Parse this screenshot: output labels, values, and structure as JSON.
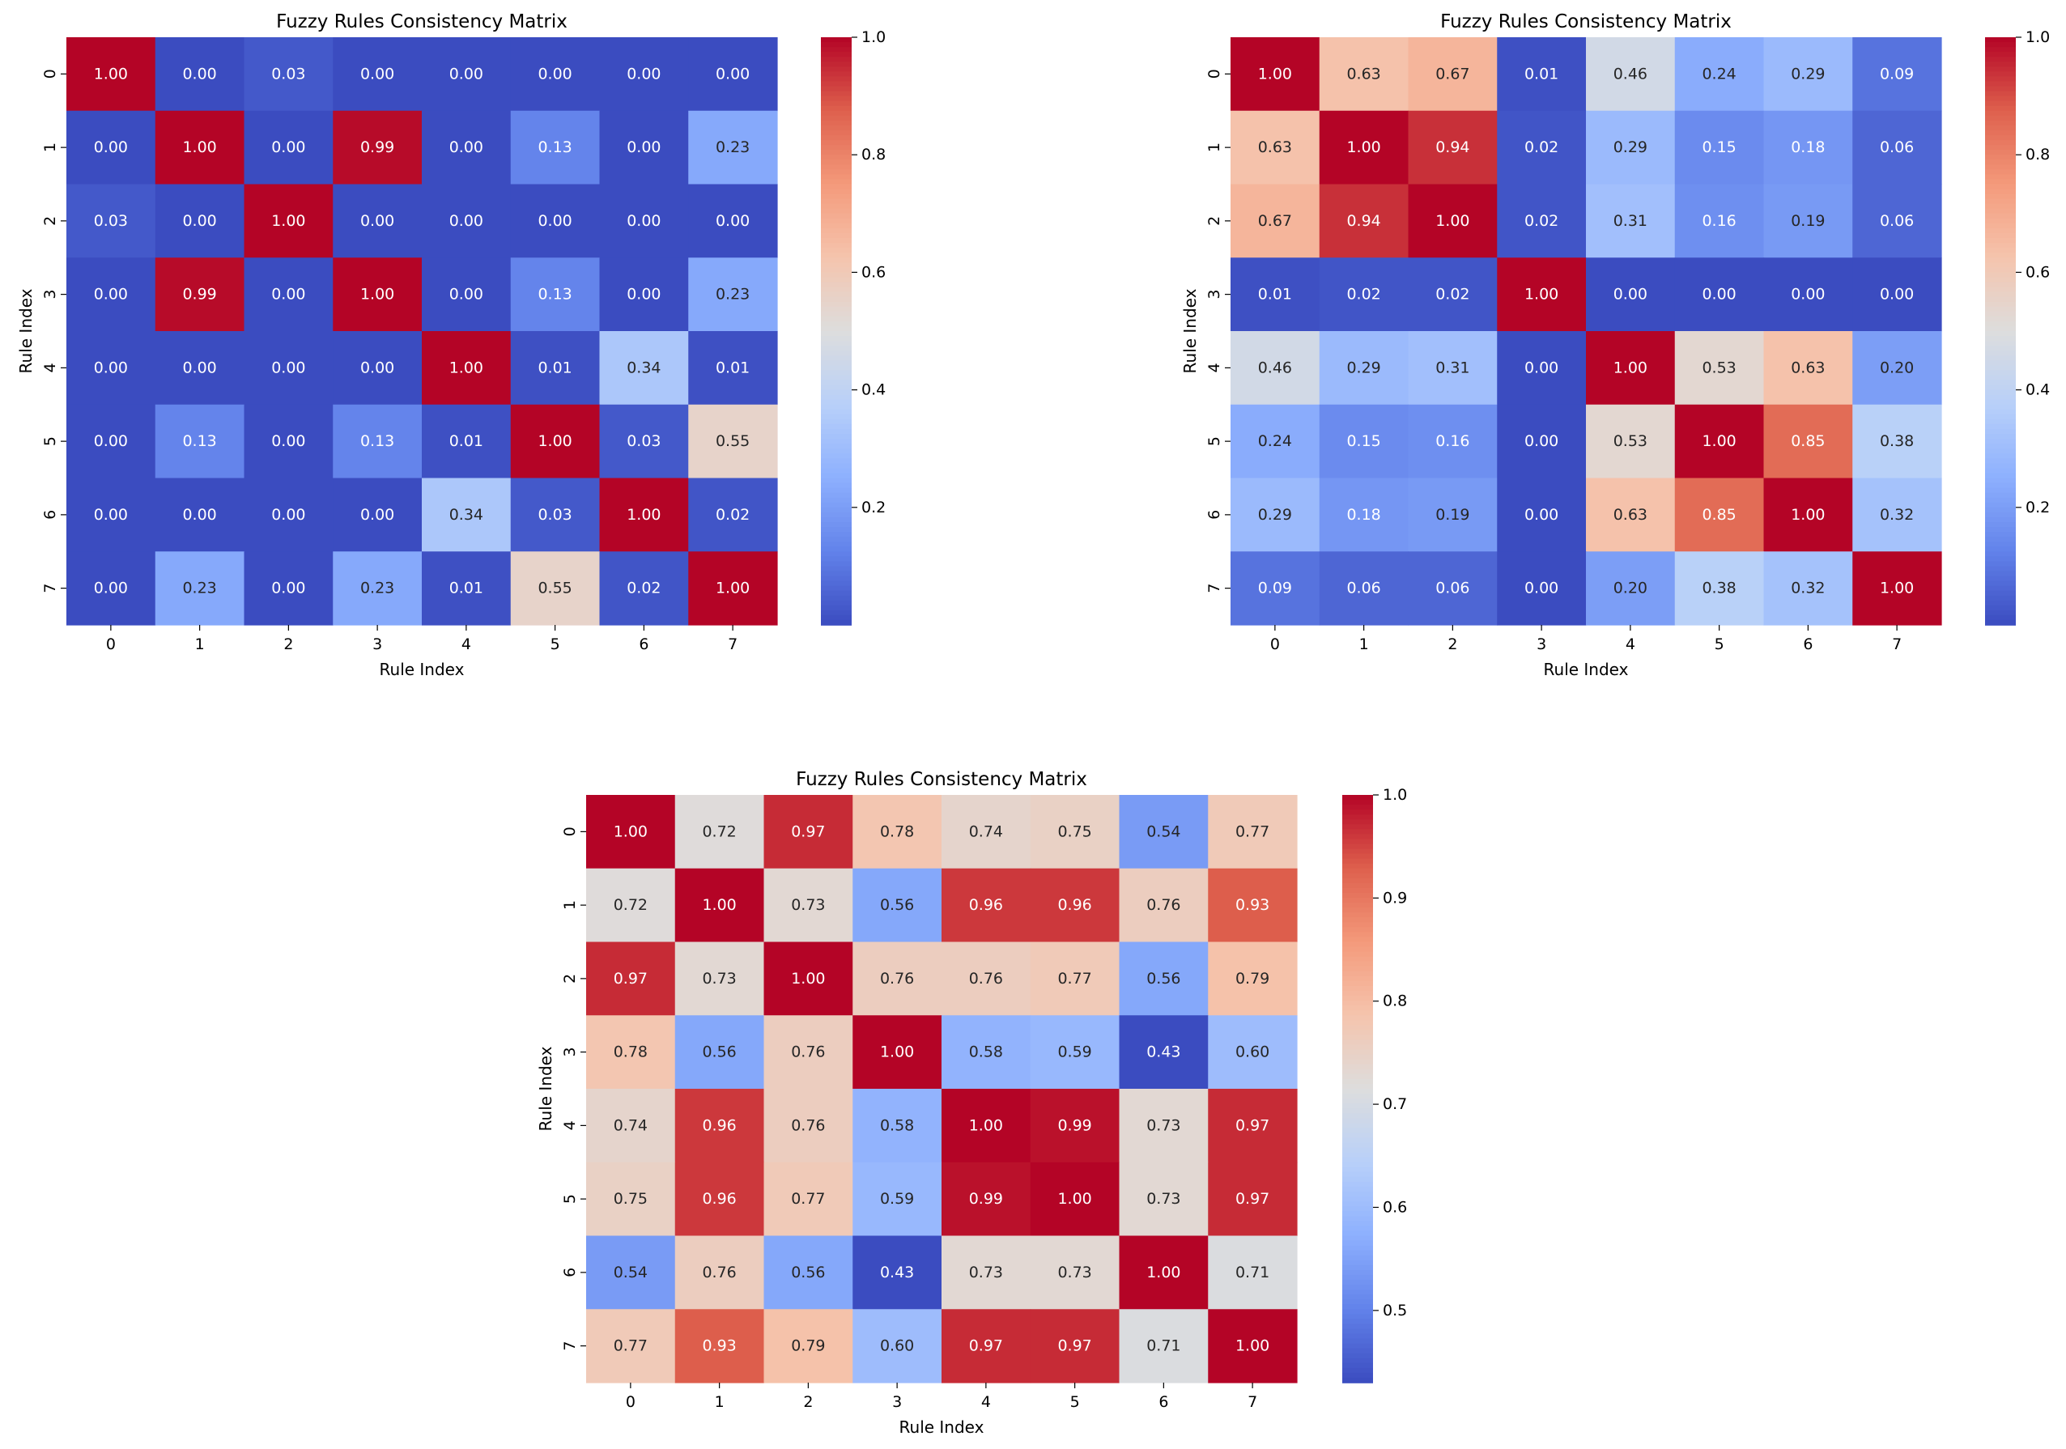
{
  "chart_data": [
    {
      "type": "heatmap",
      "title": "Fuzzy Rules Consistency Matrix",
      "xlabel": "Rule Index",
      "ylabel": "Rule Index",
      "x_ticks": [
        "0",
        "1",
        "2",
        "3",
        "4",
        "5",
        "6",
        "7"
      ],
      "y_ticks": [
        "0",
        "1",
        "2",
        "3",
        "4",
        "5",
        "6",
        "7"
      ],
      "colormap": "coolwarm",
      "vmin": 0.0,
      "vmax": 1.0,
      "colorbar_ticks": [
        0.2,
        0.4,
        0.6,
        0.8,
        1.0
      ],
      "colorbar_tick_labels": [
        "0.2",
        "0.4",
        "0.6",
        "0.8",
        "1.0"
      ],
      "values": [
        [
          1.0,
          0.0,
          0.03,
          0.0,
          0.0,
          0.0,
          0.0,
          0.0
        ],
        [
          0.0,
          1.0,
          0.0,
          0.99,
          0.0,
          0.13,
          0.0,
          0.23
        ],
        [
          0.03,
          0.0,
          1.0,
          0.0,
          0.0,
          0.0,
          0.0,
          0.0
        ],
        [
          0.0,
          0.99,
          0.0,
          1.0,
          0.0,
          0.13,
          0.0,
          0.23
        ],
        [
          0.0,
          0.0,
          0.0,
          0.0,
          1.0,
          0.01,
          0.34,
          0.01
        ],
        [
          0.0,
          0.13,
          0.0,
          0.13,
          0.01,
          1.0,
          0.03,
          0.55
        ],
        [
          0.0,
          0.0,
          0.0,
          0.0,
          0.34,
          0.03,
          1.0,
          0.02
        ],
        [
          0.0,
          0.23,
          0.0,
          0.23,
          0.01,
          0.55,
          0.02,
          1.0
        ]
      ]
    },
    {
      "type": "heatmap",
      "title": "Fuzzy Rules Consistency Matrix",
      "xlabel": "Rule Index",
      "ylabel": "Rule Index",
      "x_ticks": [
        "0",
        "1",
        "2",
        "3",
        "4",
        "5",
        "6",
        "7"
      ],
      "y_ticks": [
        "0",
        "1",
        "2",
        "3",
        "4",
        "5",
        "6",
        "7"
      ],
      "colormap": "coolwarm",
      "vmin": 0.0,
      "vmax": 1.0,
      "colorbar_ticks": [
        0.2,
        0.4,
        0.6,
        0.8,
        1.0
      ],
      "colorbar_tick_labels": [
        "0.2",
        "0.4",
        "0.6",
        "0.8",
        "1.0"
      ],
      "values": [
        [
          1.0,
          0.63,
          0.67,
          0.01,
          0.46,
          0.24,
          0.29,
          0.09
        ],
        [
          0.63,
          1.0,
          0.94,
          0.02,
          0.29,
          0.15,
          0.18,
          0.06
        ],
        [
          0.67,
          0.94,
          1.0,
          0.02,
          0.31,
          0.16,
          0.19,
          0.06
        ],
        [
          0.01,
          0.02,
          0.02,
          1.0,
          0.0,
          0.0,
          0.0,
          0.0
        ],
        [
          0.46,
          0.29,
          0.31,
          0.0,
          1.0,
          0.53,
          0.63,
          0.2
        ],
        [
          0.24,
          0.15,
          0.16,
          0.0,
          0.53,
          1.0,
          0.85,
          0.38
        ],
        [
          0.29,
          0.18,
          0.19,
          0.0,
          0.63,
          0.85,
          1.0,
          0.32
        ],
        [
          0.09,
          0.06,
          0.06,
          0.0,
          0.2,
          0.38,
          0.32,
          1.0
        ]
      ]
    },
    {
      "type": "heatmap",
      "title": "Fuzzy Rules Consistency Matrix",
      "xlabel": "Rule Index",
      "ylabel": "Rule Index",
      "x_ticks": [
        "0",
        "1",
        "2",
        "3",
        "4",
        "5",
        "6",
        "7"
      ],
      "y_ticks": [
        "0",
        "1",
        "2",
        "3",
        "4",
        "5",
        "6",
        "7"
      ],
      "colormap": "coolwarm",
      "vmin": 0.43,
      "vmax": 1.0,
      "colorbar_ticks": [
        0.5,
        0.6,
        0.7,
        0.8,
        0.9,
        1.0
      ],
      "colorbar_tick_labels": [
        "0.5",
        "0.6",
        "0.7",
        "0.8",
        "0.9",
        "1.0"
      ],
      "values": [
        [
          1.0,
          0.72,
          0.97,
          0.78,
          0.74,
          0.75,
          0.54,
          0.77
        ],
        [
          0.72,
          1.0,
          0.73,
          0.56,
          0.96,
          0.96,
          0.76,
          0.93
        ],
        [
          0.97,
          0.73,
          1.0,
          0.76,
          0.76,
          0.77,
          0.56,
          0.79
        ],
        [
          0.78,
          0.56,
          0.76,
          1.0,
          0.58,
          0.59,
          0.43,
          0.6
        ],
        [
          0.74,
          0.96,
          0.76,
          0.58,
          1.0,
          0.99,
          0.73,
          0.97
        ],
        [
          0.75,
          0.96,
          0.77,
          0.59,
          0.99,
          1.0,
          0.73,
          0.97
        ],
        [
          0.54,
          0.76,
          0.56,
          0.43,
          0.73,
          0.73,
          1.0,
          0.71
        ],
        [
          0.77,
          0.93,
          0.79,
          0.6,
          0.97,
          0.97,
          0.71,
          1.0
        ]
      ]
    }
  ]
}
